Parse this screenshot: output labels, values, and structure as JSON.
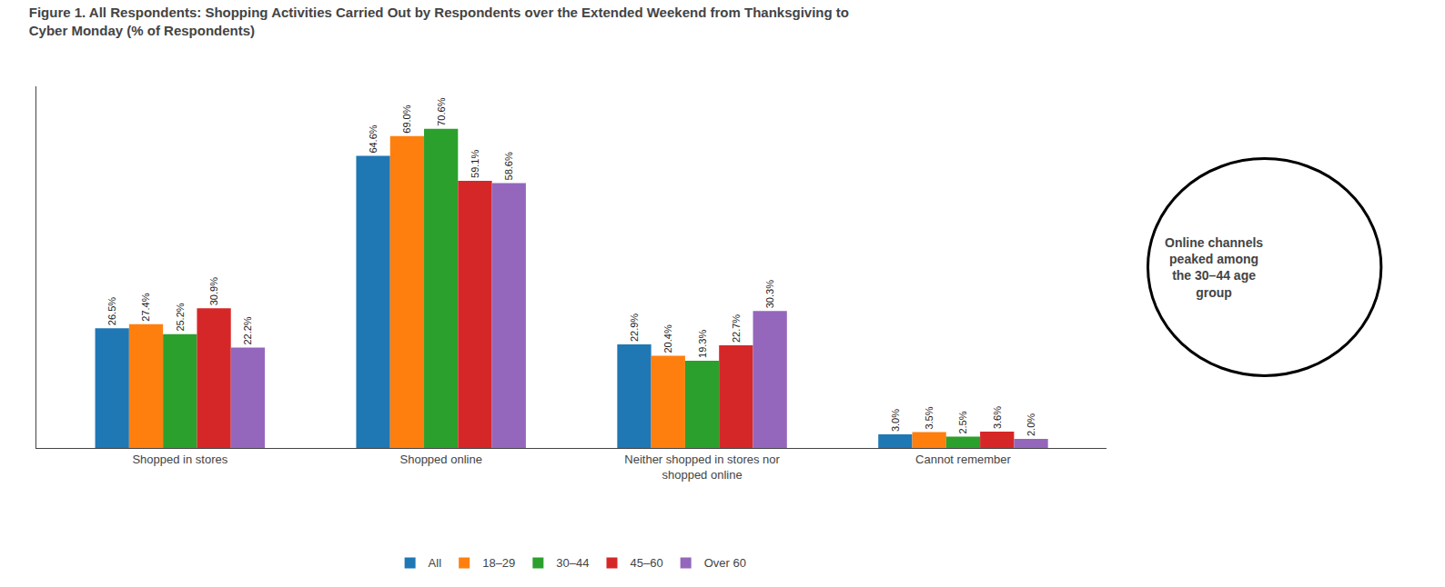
{
  "chart_data": {
    "type": "bar",
    "title": "Figure 1. All Respondents: Shopping Activities Carried Out by Respondents over the Extended Weekend from Thanksgiving to\nCyber Monday (% of Respondents)",
    "categories": [
      "Shopped in stores",
      "Shopped online",
      "Neither shopped in stores nor\nshopped online",
      "Cannot remember"
    ],
    "series": [
      {
        "name": "All",
        "values": [
          26.5,
          64.6,
          22.9,
          3.0
        ],
        "value_labels": [
          "26.5%",
          "64.6%",
          "22.9%",
          "3.0%"
        ]
      },
      {
        "name": "18–29",
        "values": [
          27.4,
          69.0,
          20.4,
          3.5
        ],
        "value_labels": [
          "27.4%",
          "69.0%",
          "20.4%",
          "3.5%"
        ]
      },
      {
        "name": "30–44",
        "values": [
          25.2,
          70.6,
          19.3,
          2.5
        ],
        "value_labels": [
          "25.2%",
          "70.6%",
          "19.3%",
          "2.5%"
        ]
      },
      {
        "name": "45–60",
        "values": [
          30.9,
          59.1,
          22.7,
          3.6
        ],
        "value_labels": [
          "30.9%",
          "59.1%",
          "22.7%",
          "3.6%"
        ]
      },
      {
        "name": "Over 60",
        "values": [
          22.2,
          58.6,
          30.3,
          2.0
        ],
        "value_labels": [
          "22.2%",
          "58.6%",
          "30.3%",
          "2.0%"
        ]
      }
    ],
    "annotation": "Online channels\npeaked among\nthe 30–44 age\ngroup",
    "ylim": [
      0,
      80
    ],
    "grid": false,
    "legend": "bottom",
    "data_labels": true,
    "tick_labels": "x"
  }
}
